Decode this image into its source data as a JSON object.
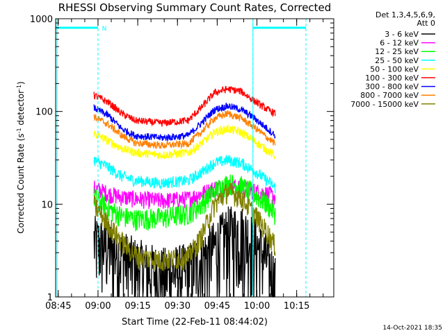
{
  "chart_data": {
    "type": "line",
    "title": "RHESSI Observing Summary Count Rates, Corrected",
    "ylabel_parts": [
      "Corrected Count Rate (s",
      "-1",
      " detector",
      "-1",
      ")"
    ],
    "xlabel": "Start Time (22-Feb-11 08:44:02)",
    "y_scale": "log",
    "ylim": [
      1,
      1000
    ],
    "y_ticks": [
      {
        "value": 1,
        "label": "1"
      },
      {
        "value": 10,
        "label": "10"
      },
      {
        "value": 100,
        "label": "100"
      },
      {
        "value": 1000,
        "label": "1000"
      }
    ],
    "x_range_minutes": [
      0,
      105
    ],
    "x_ticks": [
      {
        "value": 1,
        "label": "08:45"
      },
      {
        "value": 16,
        "label": "09:00"
      },
      {
        "value": 31,
        "label": "09:15"
      },
      {
        "value": 46,
        "label": "09:30"
      },
      {
        "value": 61,
        "label": "09:45"
      },
      {
        "value": 76,
        "label": "10:00"
      },
      {
        "value": 91,
        "label": "10:15"
      }
    ],
    "legend_header": [
      "Det 1,3,4,5,6,9,",
      "Att 0"
    ],
    "data_start_min": 14.5,
    "data_end_min": 83,
    "series": [
      {
        "name": "3 - 6 keV",
        "color": "#000000",
        "noise": 0.5,
        "x": [
          14.5,
          20,
          25,
          30,
          40,
          50,
          55,
          60,
          65,
          70,
          75,
          80,
          83
        ],
        "values": [
          4,
          3.5,
          2.8,
          2.3,
          1.8,
          2.0,
          2.6,
          3.5,
          5.0,
          5.2,
          4.0,
          2.5,
          1.5
        ]
      },
      {
        "name": "6 - 12 keV",
        "color": "#ff00ff",
        "noise": 0.12,
        "x": [
          14.5,
          20,
          25,
          30,
          40,
          50,
          55,
          60,
          65,
          70,
          75,
          80,
          83
        ],
        "values": [
          15,
          13,
          12,
          11.5,
          11,
          11.5,
          13,
          15,
          16,
          15,
          14,
          13,
          12
        ]
      },
      {
        "name": "12 - 25 keV",
        "color": "#00ff00",
        "noise": 0.15,
        "x": [
          14.5,
          20,
          25,
          30,
          40,
          50,
          55,
          60,
          65,
          70,
          75,
          80,
          83
        ],
        "values": [
          12,
          9,
          7.5,
          7,
          7.2,
          8,
          10,
          14,
          17,
          16,
          13,
          10,
          8
        ]
      },
      {
        "name": "25 - 50 keV",
        "color": "#00ffff",
        "noise": 0.08,
        "x": [
          14.5,
          20,
          25,
          30,
          40,
          50,
          55,
          60,
          65,
          70,
          75,
          80,
          83
        ],
        "values": [
          30,
          25,
          20,
          18,
          17,
          18,
          22,
          28,
          30,
          28,
          23,
          18,
          15
        ]
      },
      {
        "name": "50 - 100 keV",
        "color": "#ffff00",
        "noise": 0.06,
        "x": [
          14.5,
          20,
          25,
          30,
          40,
          50,
          55,
          60,
          65,
          70,
          75,
          80,
          83
        ],
        "values": [
          58,
          48,
          40,
          36,
          34,
          36,
          45,
          60,
          65,
          60,
          48,
          38,
          33
        ]
      },
      {
        "name": "100 - 300 keV",
        "color": "#ff0000",
        "noise": 0.05,
        "x": [
          14.5,
          20,
          25,
          30,
          40,
          50,
          55,
          60,
          65,
          70,
          75,
          80,
          83
        ],
        "values": [
          150,
          125,
          95,
          80,
          75,
          80,
          110,
          160,
          175,
          165,
          130,
          105,
          95
        ]
      },
      {
        "name": "300 - 800 keV",
        "color": "#0000ff",
        "noise": 0.05,
        "x": [
          14.5,
          20,
          25,
          30,
          40,
          50,
          55,
          60,
          65,
          70,
          75,
          80,
          83
        ],
        "values": [
          110,
          90,
          65,
          55,
          52,
          55,
          75,
          105,
          115,
          105,
          85,
          65,
          55
        ]
      },
      {
        "name": "800 - 7000 keV",
        "color": "#ff8000",
        "noise": 0.05,
        "x": [
          14.5,
          20,
          25,
          30,
          40,
          50,
          55,
          60,
          65,
          70,
          75,
          80,
          83
        ],
        "values": [
          88,
          72,
          55,
          46,
          43,
          45,
          60,
          85,
          95,
          85,
          68,
          52,
          45
        ]
      },
      {
        "name": "7000 - 15000 keV",
        "color": "#808000",
        "noise": 0.15,
        "x": [
          14.5,
          20,
          25,
          30,
          40,
          50,
          55,
          60,
          65,
          70,
          75,
          80,
          83
        ],
        "values": [
          10,
          6,
          4,
          2.8,
          2.5,
          2.7,
          4.5,
          10,
          14,
          12,
          8,
          5,
          3.5
        ]
      }
    ],
    "night_bars": [
      {
        "start_min": 0,
        "end_min": 16,
        "value": 800
      },
      {
        "start_min": 74.5,
        "end_min": 94.5,
        "value": 800
      }
    ],
    "saa_lines": [
      {
        "min": 16
      },
      {
        "min": 74.5
      },
      {
        "min": 94.5
      }
    ],
    "n_marker": {
      "min": 17.5,
      "label": "N"
    },
    "footer_date": "14-Oct-2021 18:35"
  },
  "colors": {
    "axis": "#000000",
    "night": "#00ffff",
    "background": "#ffffff"
  }
}
